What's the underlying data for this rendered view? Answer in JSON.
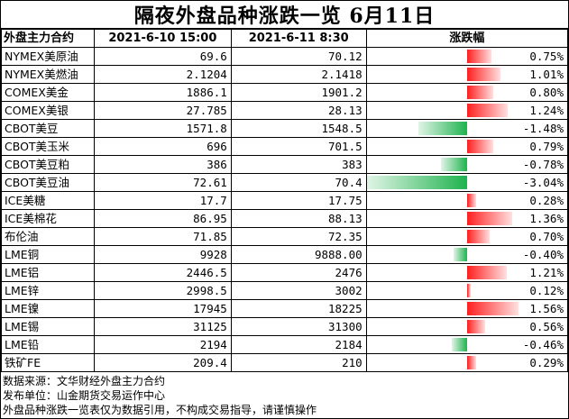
{
  "title": "隔夜外盘品种涨跌一览 6月11日",
  "headers": {
    "name": "外盘主力合约",
    "prev": "2021-6-10 15:00",
    "curr": "2021-6-11 8:30",
    "change": "涨跌幅"
  },
  "rows": [
    {
      "name": "NYMEX美原油",
      "prev": "69.6",
      "curr": "70.12",
      "change": "0.75%",
      "pct": 0.75
    },
    {
      "name": "NYMEX美燃油",
      "prev": "2.1204",
      "curr": "2.1418",
      "change": "1.01%",
      "pct": 1.01
    },
    {
      "name": "COMEX美金",
      "prev": "1886.1",
      "curr": "1901.2",
      "change": "0.80%",
      "pct": 0.8
    },
    {
      "name": "COMEX美银",
      "prev": "27.785",
      "curr": "28.13",
      "change": "1.24%",
      "pct": 1.24
    },
    {
      "name": "CBOT美豆",
      "prev": "1571.8",
      "curr": "1548.5",
      "change": "-1.48%",
      "pct": -1.48
    },
    {
      "name": "CBOT美玉米",
      "prev": "696",
      "curr": "701.5",
      "change": "0.79%",
      "pct": 0.79
    },
    {
      "name": "CBOT美豆粕",
      "prev": "386",
      "curr": "383",
      "change": "-0.78%",
      "pct": -0.78
    },
    {
      "name": "CBOT美豆油",
      "prev": "72.61",
      "curr": "70.4",
      "change": "-3.04%",
      "pct": -3.04
    },
    {
      "name": "ICE美糖",
      "prev": "17.7",
      "curr": "17.75",
      "change": "0.28%",
      "pct": 0.28
    },
    {
      "name": "ICE美棉花",
      "prev": "86.95",
      "curr": "88.13",
      "change": "1.36%",
      "pct": 1.36
    },
    {
      "name": "布伦油",
      "prev": "71.85",
      "curr": "72.35",
      "change": "0.70%",
      "pct": 0.7
    },
    {
      "name": "LME铜",
      "prev": "9928",
      "curr": "9888.00",
      "change": "-0.40%",
      "pct": -0.4
    },
    {
      "name": "LME铝",
      "prev": "2446.5",
      "curr": "2476",
      "change": "1.21%",
      "pct": 1.21
    },
    {
      "name": "LME锌",
      "prev": "2998.5",
      "curr": "3002",
      "change": "0.12%",
      "pct": 0.12
    },
    {
      "name": "LME镍",
      "prev": "17945",
      "curr": "18225",
      "change": "1.56%",
      "pct": 1.56
    },
    {
      "name": "LME锡",
      "prev": "31125",
      "curr": "31300",
      "change": "0.56%",
      "pct": 0.56
    },
    {
      "name": "LME铅",
      "prev": "2194",
      "curr": "2184",
      "change": "-0.46%",
      "pct": -0.46
    },
    {
      "name": "铁矿FE",
      "prev": "209.4",
      "curr": "210",
      "change": "0.29%",
      "pct": 0.29
    }
  ],
  "notes": [
    "数据来源：文华财经外盘主力合约",
    "发布单位：山金期货交易运作中心",
    "外盘品种涨跌一览表仅为数据引用，不构成交易指导，请谨慎操作"
  ],
  "colors": {
    "up": "#ff1f1f",
    "down": "#1fb34f"
  }
}
